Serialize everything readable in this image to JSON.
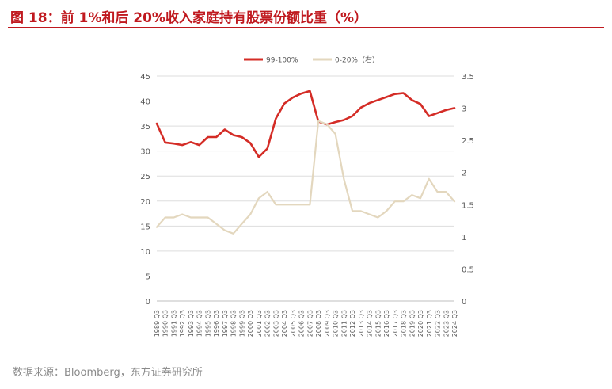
{
  "figure": {
    "title": "图 18：前 1%和后 20%收入家庭持有股票份额比重（%）",
    "source": "数据来源：Bloomberg，东方证券研究所"
  },
  "colors": {
    "accent": "#c0191f",
    "series_top": "#d42c26",
    "series_bottom": "#e3d7be"
  },
  "chart_data": {
    "type": "line",
    "x": [
      "1989 Q3",
      "1990 Q3",
      "1991 Q3",
      "1992 Q3",
      "1993 Q3",
      "1994 Q3",
      "1995 Q3",
      "1996 Q3",
      "1997 Q3",
      "1998 Q3",
      "1999 Q3",
      "2000 Q3",
      "2001 Q3",
      "2002 Q3",
      "2003 Q3",
      "2004 Q3",
      "2005 Q3",
      "2006 Q3",
      "2007 Q3",
      "2008 Q3",
      "2009 Q3",
      "2010 Q3",
      "2011 Q3",
      "2012 Q3",
      "2013 Q3",
      "2014 Q3",
      "2015 Q3",
      "2016 Q3",
      "2017 Q3",
      "2018 Q3",
      "2019 Q3",
      "2020 Q3",
      "2021 Q3",
      "2022 Q3",
      "2023 Q3",
      "2024 Q3"
    ],
    "x_tick_labels": [
      "1989 Q3",
      "1990 Q3",
      "1991 Q3",
      "1992 Q3",
      "1993 Q3",
      "1994 Q3",
      "1995 Q3",
      "1996 Q3",
      "1997 Q3",
      "1998 Q3",
      "1999 Q3",
      "2000 Q3",
      "2001 Q3",
      "2002 Q3",
      "2003 Q3",
      "2004 Q3",
      "2005 Q3",
      "2006 Q3",
      "2007 Q3",
      "2008 Q3",
      "2009 Q3",
      "2010 Q3",
      "2011 Q3",
      "2012 Q3",
      "2013 Q3",
      "2014 Q3",
      "2015 Q3",
      "2016 Q3",
      "2017 Q3",
      "2018 Q3",
      "2019 Q3",
      "2020 Q3",
      "2021 Q3",
      "2022 Q3",
      "2023 Q3",
      "2024 Q3"
    ],
    "y_left": {
      "min": 0,
      "max": 45,
      "ticks": [
        "0",
        "5",
        "10",
        "15",
        "20",
        "25",
        "30",
        "35",
        "40",
        "45"
      ]
    },
    "y_right": {
      "min": 0,
      "max": 3.5,
      "ticks": [
        "0",
        "0.5",
        "1",
        "1.5",
        "2",
        "2.5",
        "3",
        "3.5"
      ]
    },
    "legend_position": "top",
    "grid": "horizontal",
    "series": [
      {
        "name": "99-100%",
        "axis": "left",
        "values": [
          35.5,
          31.7,
          31.5,
          31.2,
          31.8,
          31.2,
          32.8,
          32.8,
          34.3,
          33.2,
          32.8,
          31.6,
          28.8,
          30.5,
          36.5,
          39.5,
          40.7,
          41.5,
          42.0,
          35.9,
          35.3,
          35.8,
          36.2,
          37.0,
          38.7,
          39.6,
          40.2,
          40.8,
          41.4,
          41.6,
          40.2,
          39.4,
          37.0,
          37.6,
          38.2,
          38.6
        ]
      },
      {
        "name": "0-20%（右）",
        "axis": "right",
        "values": [
          1.15,
          1.3,
          1.3,
          1.35,
          1.3,
          1.3,
          1.3,
          1.2,
          1.1,
          1.05,
          1.2,
          1.35,
          1.6,
          1.7,
          1.5,
          1.5,
          1.5,
          1.5,
          1.5,
          2.8,
          2.75,
          2.6,
          1.9,
          1.4,
          1.4,
          1.35,
          1.3,
          1.4,
          1.55,
          1.55,
          1.65,
          1.6,
          1.9,
          1.7,
          1.7,
          1.55
        ]
      }
    ]
  }
}
